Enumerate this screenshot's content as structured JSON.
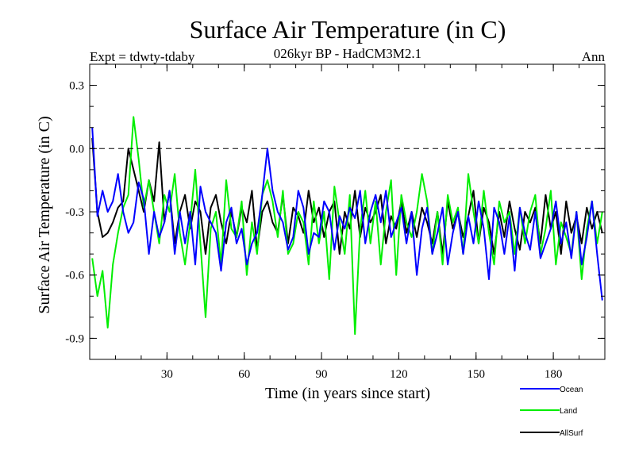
{
  "chart_data": {
    "type": "line",
    "title": "Surface Air Temperature (in C)",
    "subtitle": "026kyr BP - HadCM3M2.1",
    "left_note": "Expt = tdwty-tdaby",
    "right_note": "Ann",
    "xlabel": "Time (in years since start)",
    "ylabel": "Surface Air Temperature (in C)",
    "xlim": [
      0,
      200
    ],
    "ylim": [
      -1.0,
      0.4
    ],
    "x_ticks": [
      30,
      60,
      90,
      120,
      150,
      180
    ],
    "x_tick_labels": [
      "30",
      "60",
      "90",
      "120",
      "150",
      "180"
    ],
    "y_ticks": [
      0.3,
      0.0,
      -0.3,
      -0.6,
      -0.9
    ],
    "y_tick_labels": [
      "0.3",
      "0.0",
      "-0.3",
      "-0.6",
      "-0.9"
    ],
    "reference_line": 0.0,
    "x_start": 1,
    "x_step": 2,
    "series": [
      {
        "name": "Ocean",
        "color": "#0000ff",
        "values": [
          0.1,
          -0.32,
          -0.2,
          -0.3,
          -0.25,
          -0.12,
          -0.3,
          -0.4,
          -0.35,
          -0.16,
          -0.24,
          -0.5,
          -0.3,
          -0.42,
          -0.35,
          -0.2,
          -0.5,
          -0.3,
          -0.45,
          -0.3,
          -0.55,
          -0.18,
          -0.3,
          -0.35,
          -0.4,
          -0.58,
          -0.35,
          -0.28,
          -0.45,
          -0.38,
          -0.55,
          -0.45,
          -0.4,
          -0.22,
          0.0,
          -0.2,
          -0.3,
          -0.35,
          -0.48,
          -0.42,
          -0.2,
          -0.28,
          -0.5,
          -0.4,
          -0.42,
          -0.25,
          -0.3,
          -0.48,
          -0.32,
          -0.38,
          -0.28,
          -0.33,
          -0.2,
          -0.45,
          -0.3,
          -0.22,
          -0.35,
          -0.2,
          -0.42,
          -0.35,
          -0.28,
          -0.45,
          -0.3,
          -0.6,
          -0.38,
          -0.28,
          -0.5,
          -0.4,
          -0.28,
          -0.55,
          -0.4,
          -0.3,
          -0.5,
          -0.32,
          -0.45,
          -0.25,
          -0.38,
          -0.62,
          -0.28,
          -0.35,
          -0.5,
          -0.32,
          -0.58,
          -0.28,
          -0.4,
          -0.48,
          -0.3,
          -0.52,
          -0.45,
          -0.38,
          -0.25,
          -0.45,
          -0.35,
          -0.52,
          -0.3,
          -0.55,
          -0.42,
          -0.25,
          -0.5,
          -0.72
        ]
      },
      {
        "name": "Land",
        "color": "#00ee00",
        "values": [
          -0.52,
          -0.7,
          -0.58,
          -0.85,
          -0.55,
          -0.4,
          -0.28,
          -0.22,
          0.15,
          -0.05,
          -0.28,
          -0.15,
          -0.3,
          -0.45,
          -0.22,
          -0.3,
          -0.12,
          -0.4,
          -0.55,
          -0.35,
          -0.1,
          -0.45,
          -0.8,
          -0.38,
          -0.3,
          -0.55,
          -0.15,
          -0.38,
          -0.42,
          -0.25,
          -0.6,
          -0.35,
          -0.5,
          -0.22,
          -0.15,
          -0.25,
          -0.42,
          -0.2,
          -0.5,
          -0.45,
          -0.3,
          -0.35,
          -0.55,
          -0.25,
          -0.45,
          -0.3,
          -0.62,
          -0.18,
          -0.35,
          -0.5,
          -0.22,
          -0.88,
          -0.38,
          -0.2,
          -0.45,
          -0.25,
          -0.55,
          -0.3,
          -0.15,
          -0.6,
          -0.22,
          -0.35,
          -0.42,
          -0.3,
          -0.12,
          -0.25,
          -0.5,
          -0.3,
          -0.55,
          -0.22,
          -0.35,
          -0.28,
          -0.5,
          -0.12,
          -0.3,
          -0.45,
          -0.2,
          -0.4,
          -0.55,
          -0.25,
          -0.35,
          -0.3,
          -0.5,
          -0.28,
          -0.45,
          -0.3,
          -0.22,
          -0.5,
          -0.38,
          -0.2,
          -0.55,
          -0.35,
          -0.42,
          -0.5,
          -0.3,
          -0.62,
          -0.38,
          -0.25,
          -0.45,
          -0.3
        ]
      },
      {
        "name": "AllSurf",
        "color": "#000000",
        "values": [
          0.05,
          -0.3,
          -0.42,
          -0.4,
          -0.35,
          -0.28,
          -0.25,
          0.0,
          -0.1,
          -0.2,
          -0.3,
          -0.15,
          -0.25,
          0.03,
          -0.35,
          -0.2,
          -0.45,
          -0.3,
          -0.22,
          -0.38,
          -0.25,
          -0.3,
          -0.5,
          -0.28,
          -0.22,
          -0.35,
          -0.45,
          -0.3,
          -0.42,
          -0.28,
          -0.35,
          -0.2,
          -0.48,
          -0.3,
          -0.25,
          -0.35,
          -0.4,
          -0.22,
          -0.45,
          -0.28,
          -0.32,
          -0.4,
          -0.2,
          -0.35,
          -0.28,
          -0.42,
          -0.3,
          -0.25,
          -0.5,
          -0.3,
          -0.38,
          -0.2,
          -0.42,
          -0.28,
          -0.35,
          -0.3,
          -0.22,
          -0.45,
          -0.32,
          -0.38,
          -0.25,
          -0.4,
          -0.3,
          -0.42,
          -0.28,
          -0.35,
          -0.45,
          -0.3,
          -0.5,
          -0.25,
          -0.38,
          -0.3,
          -0.42,
          -0.32,
          -0.2,
          -0.45,
          -0.28,
          -0.35,
          -0.5,
          -0.3,
          -0.42,
          -0.25,
          -0.38,
          -0.48,
          -0.3,
          -0.35,
          -0.28,
          -0.45,
          -0.22,
          -0.38,
          -0.3,
          -0.5,
          -0.25,
          -0.4,
          -0.32,
          -0.45,
          -0.28,
          -0.38,
          -0.3,
          -0.4
        ]
      }
    ],
    "legend_placement": "bottom-right"
  }
}
